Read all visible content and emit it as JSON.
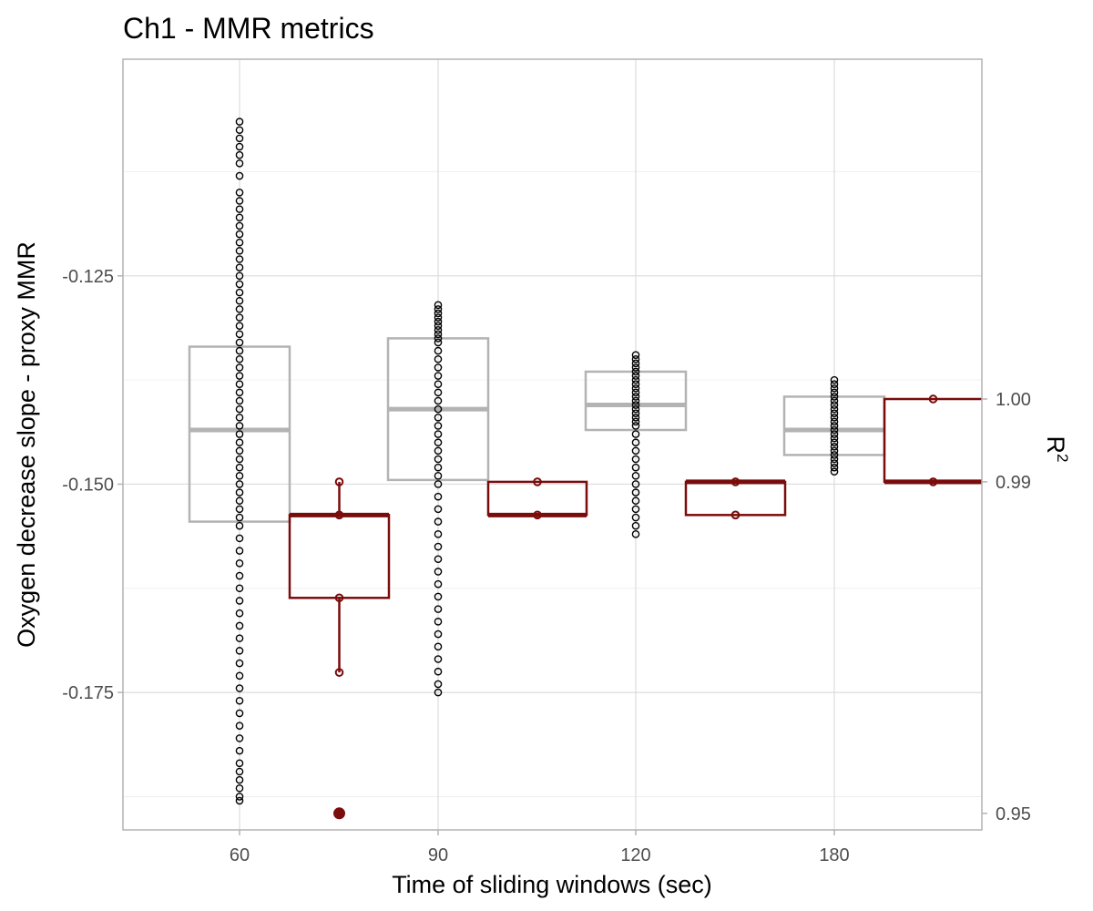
{
  "chart_data": {
    "type": "box",
    "title": "Ch1 - MMR metrics",
    "xlabel": "Time of sliding windows (sec)",
    "ylabel": "Oxygen decrease slope - proxy MMR",
    "y2label": "R",
    "y2label_superscript": "2",
    "categories": [
      "60",
      "90",
      "120",
      "180"
    ],
    "ylim": [
      -0.1915,
      -0.099
    ],
    "yticks": [
      -0.125,
      -0.15,
      -0.175
    ],
    "ytick_labels": [
      "-0.125",
      "-0.150",
      "-0.175"
    ],
    "y2lim": [
      0.948,
      1.041
    ],
    "y2ticks": [
      1.0,
      0.99,
      0.95
    ],
    "y2tick_labels": [
      "1.00",
      "0.99",
      "0.95"
    ],
    "grid": true,
    "colors": {
      "slope": "#b3b3b3",
      "slope_points": "#000000",
      "r2": "#7a0c0c"
    },
    "slope_series": {
      "name": "",
      "boxes": [
        {
          "category": "60",
          "q1": -0.1545,
          "median": -0.1435,
          "q3": -0.1335,
          "points": [
            -0.1065,
            -0.1075,
            -0.1085,
            -0.1095,
            -0.1105,
            -0.1115,
            -0.113,
            -0.115,
            -0.116,
            -0.117,
            -0.118,
            -0.119,
            -0.12,
            -0.121,
            -0.122,
            -0.123,
            -0.124,
            -0.125,
            -0.126,
            -0.127,
            -0.128,
            -0.129,
            -0.13,
            -0.131,
            -0.132,
            -0.133,
            -0.134,
            -0.135,
            -0.136,
            -0.137,
            -0.138,
            -0.139,
            -0.14,
            -0.141,
            -0.142,
            -0.143,
            -0.144,
            -0.145,
            -0.146,
            -0.147,
            -0.148,
            -0.149,
            -0.15,
            -0.151,
            -0.152,
            -0.153,
            -0.154,
            -0.155,
            -0.1565,
            -0.158,
            -0.1595,
            -0.161,
            -0.1625,
            -0.164,
            -0.1655,
            -0.167,
            -0.1685,
            -0.17,
            -0.1715,
            -0.173,
            -0.1745,
            -0.176,
            -0.1775,
            -0.179,
            -0.1805,
            -0.182,
            -0.1835,
            -0.1845,
            -0.1855,
            -0.1865,
            -0.1875,
            -0.188
          ]
        },
        {
          "category": "90",
          "q1": -0.1495,
          "median": -0.141,
          "q3": -0.1325,
          "points": [
            -0.1285,
            -0.129,
            -0.1295,
            -0.13,
            -0.1305,
            -0.131,
            -0.1315,
            -0.132,
            -0.1325,
            -0.133,
            -0.134,
            -0.135,
            -0.136,
            -0.137,
            -0.138,
            -0.139,
            -0.14,
            -0.141,
            -0.142,
            -0.143,
            -0.144,
            -0.145,
            -0.146,
            -0.147,
            -0.148,
            -0.149,
            -0.15,
            -0.1515,
            -0.153,
            -0.1545,
            -0.156,
            -0.1575,
            -0.159,
            -0.1605,
            -0.162,
            -0.1635,
            -0.165,
            -0.1665,
            -0.168,
            -0.1695,
            -0.171,
            -0.1725,
            -0.174,
            -0.175
          ]
        },
        {
          "category": "120",
          "q1": -0.1435,
          "median": -0.1405,
          "q3": -0.1365,
          "points": [
            -0.1345,
            -0.135,
            -0.1355,
            -0.136,
            -0.1365,
            -0.137,
            -0.1375,
            -0.138,
            -0.1385,
            -0.139,
            -0.1395,
            -0.14,
            -0.1405,
            -0.141,
            -0.1415,
            -0.142,
            -0.1425,
            -0.143,
            -0.144,
            -0.145,
            -0.146,
            -0.147,
            -0.148,
            -0.149,
            -0.15,
            -0.151,
            -0.152,
            -0.153,
            -0.154,
            -0.155,
            -0.156
          ]
        },
        {
          "category": "180",
          "q1": -0.1465,
          "median": -0.1435,
          "q3": -0.1395,
          "points": [
            -0.1375,
            -0.138,
            -0.1385,
            -0.139,
            -0.1395,
            -0.14,
            -0.1405,
            -0.141,
            -0.1415,
            -0.142,
            -0.1425,
            -0.143,
            -0.1435,
            -0.144,
            -0.1445,
            -0.145,
            -0.1455,
            -0.146,
            -0.1465,
            -0.147,
            -0.1475,
            -0.148,
            -0.1485
          ]
        }
      ]
    },
    "r2_series": {
      "name": "",
      "boxes": [
        {
          "position": "60-90",
          "q1": 0.976,
          "median": 0.986,
          "q3": 0.986,
          "whisker_low": 0.967,
          "whisker_high": 0.99,
          "points": [
            0.99,
            0.986,
            0.976,
            0.967
          ],
          "outliers": [
            0.95
          ]
        },
        {
          "position": "90-120",
          "q1": 0.986,
          "median": 0.986,
          "q3": 0.99,
          "whisker_low": 0.986,
          "whisker_high": 0.99,
          "points": [
            0.99,
            0.986
          ],
          "outliers": []
        },
        {
          "position": "120-180",
          "q1": 0.986,
          "median": 0.99,
          "q3": 0.99,
          "whisker_low": 0.986,
          "whisker_high": 0.99,
          "points": [
            0.99,
            0.986
          ],
          "outliers": []
        },
        {
          "position": "180+",
          "q1": 0.99,
          "median": 0.99,
          "q3": 1.0,
          "whisker_low": 0.99,
          "whisker_high": 1.0,
          "points": [
            1.0,
            0.99
          ],
          "outliers": []
        }
      ]
    }
  }
}
